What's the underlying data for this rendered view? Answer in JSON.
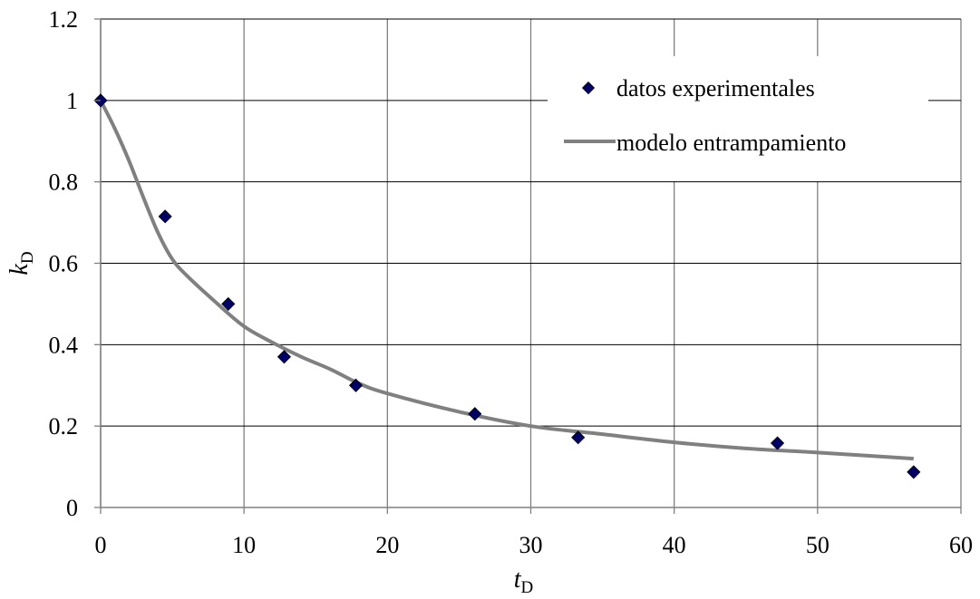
{
  "chart_data": {
    "type": "scatter",
    "xlabel": {
      "main": "t",
      "sub": "D"
    },
    "ylabel": {
      "main": "k",
      "sub": "D"
    },
    "xlim": [
      0,
      60
    ],
    "ylim": [
      0,
      1.2
    ],
    "x_ticks": [
      0,
      10,
      20,
      30,
      40,
      50,
      60
    ],
    "y_ticks": [
      0,
      0.2,
      0.4,
      0.6,
      0.8,
      1,
      1.2
    ],
    "x_tick_labels": [
      "0",
      "10",
      "20",
      "30",
      "40",
      "50",
      "60"
    ],
    "y_tick_labels": [
      "0",
      "0.2",
      "0.4",
      "0.6",
      "0.8",
      "1",
      "1.2"
    ],
    "grid": true,
    "legend_position": "top-right",
    "series": [
      {
        "name": "datos experimentales",
        "kind": "scatter",
        "marker": "diamond",
        "color": "#000066",
        "x": [
          0,
          4.5,
          8.9,
          12.8,
          17.8,
          26.1,
          33.3,
          47.2,
          56.7
        ],
        "y": [
          1.0,
          0.715,
          0.5,
          0.37,
          0.3,
          0.23,
          0.172,
          0.158,
          0.087
        ]
      },
      {
        "name": "modelo entrampamiento",
        "kind": "line",
        "color": "#808080",
        "x": [
          0,
          1,
          2,
          3,
          4,
          5,
          6,
          8,
          10,
          12,
          14,
          16,
          18,
          20,
          25,
          30,
          35,
          40,
          45,
          50,
          56.7
        ],
        "y": [
          1.0,
          0.93,
          0.85,
          0.76,
          0.675,
          0.61,
          0.57,
          0.505,
          0.445,
          0.405,
          0.37,
          0.34,
          0.305,
          0.28,
          0.235,
          0.2,
          0.18,
          0.16,
          0.145,
          0.135,
          0.12
        ]
      }
    ]
  }
}
